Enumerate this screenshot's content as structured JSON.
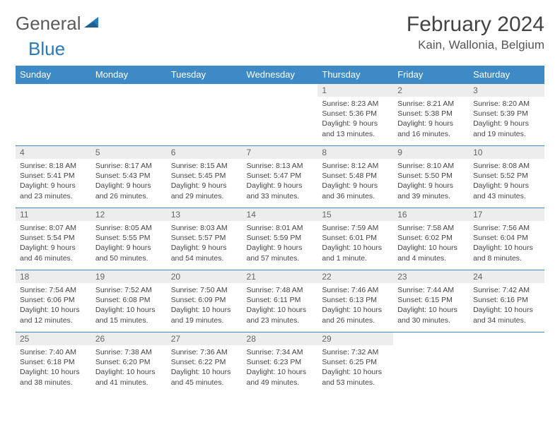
{
  "logo": {
    "textGray": "General",
    "textBlue": "Blue"
  },
  "header": {
    "title": "February 2024",
    "subtitle": "Kain, Wallonia, Belgium"
  },
  "colors": {
    "headerBar": "#3d8ac7",
    "dayNumBg": "#ededed",
    "textPrimary": "#444444",
    "textMuted": "#666666",
    "logoGray": "#5a5a5a",
    "logoBlue": "#2a7ab8",
    "pageBg": "#ffffff"
  },
  "fonts": {
    "title": 30,
    "subtitle": 17,
    "dayHeader": 13,
    "dayNum": 12,
    "body": 10.5
  },
  "dayNames": [
    "Sunday",
    "Monday",
    "Tuesday",
    "Wednesday",
    "Thursday",
    "Friday",
    "Saturday"
  ],
  "weeks": [
    [
      null,
      null,
      null,
      null,
      {
        "num": "1",
        "sunrise": "8:23 AM",
        "sunset": "5:36 PM",
        "daylight": "9 hours and 13 minutes."
      },
      {
        "num": "2",
        "sunrise": "8:21 AM",
        "sunset": "5:38 PM",
        "daylight": "9 hours and 16 minutes."
      },
      {
        "num": "3",
        "sunrise": "8:20 AM",
        "sunset": "5:39 PM",
        "daylight": "9 hours and 19 minutes."
      }
    ],
    [
      {
        "num": "4",
        "sunrise": "8:18 AM",
        "sunset": "5:41 PM",
        "daylight": "9 hours and 23 minutes."
      },
      {
        "num": "5",
        "sunrise": "8:17 AM",
        "sunset": "5:43 PM",
        "daylight": "9 hours and 26 minutes."
      },
      {
        "num": "6",
        "sunrise": "8:15 AM",
        "sunset": "5:45 PM",
        "daylight": "9 hours and 29 minutes."
      },
      {
        "num": "7",
        "sunrise": "8:13 AM",
        "sunset": "5:47 PM",
        "daylight": "9 hours and 33 minutes."
      },
      {
        "num": "8",
        "sunrise": "8:12 AM",
        "sunset": "5:48 PM",
        "daylight": "9 hours and 36 minutes."
      },
      {
        "num": "9",
        "sunrise": "8:10 AM",
        "sunset": "5:50 PM",
        "daylight": "9 hours and 39 minutes."
      },
      {
        "num": "10",
        "sunrise": "8:08 AM",
        "sunset": "5:52 PM",
        "daylight": "9 hours and 43 minutes."
      }
    ],
    [
      {
        "num": "11",
        "sunrise": "8:07 AM",
        "sunset": "5:54 PM",
        "daylight": "9 hours and 46 minutes."
      },
      {
        "num": "12",
        "sunrise": "8:05 AM",
        "sunset": "5:55 PM",
        "daylight": "9 hours and 50 minutes."
      },
      {
        "num": "13",
        "sunrise": "8:03 AM",
        "sunset": "5:57 PM",
        "daylight": "9 hours and 54 minutes."
      },
      {
        "num": "14",
        "sunrise": "8:01 AM",
        "sunset": "5:59 PM",
        "daylight": "9 hours and 57 minutes."
      },
      {
        "num": "15",
        "sunrise": "7:59 AM",
        "sunset": "6:01 PM",
        "daylight": "10 hours and 1 minute."
      },
      {
        "num": "16",
        "sunrise": "7:58 AM",
        "sunset": "6:02 PM",
        "daylight": "10 hours and 4 minutes."
      },
      {
        "num": "17",
        "sunrise": "7:56 AM",
        "sunset": "6:04 PM",
        "daylight": "10 hours and 8 minutes."
      }
    ],
    [
      {
        "num": "18",
        "sunrise": "7:54 AM",
        "sunset": "6:06 PM",
        "daylight": "10 hours and 12 minutes."
      },
      {
        "num": "19",
        "sunrise": "7:52 AM",
        "sunset": "6:08 PM",
        "daylight": "10 hours and 15 minutes."
      },
      {
        "num": "20",
        "sunrise": "7:50 AM",
        "sunset": "6:09 PM",
        "daylight": "10 hours and 19 minutes."
      },
      {
        "num": "21",
        "sunrise": "7:48 AM",
        "sunset": "6:11 PM",
        "daylight": "10 hours and 23 minutes."
      },
      {
        "num": "22",
        "sunrise": "7:46 AM",
        "sunset": "6:13 PM",
        "daylight": "10 hours and 26 minutes."
      },
      {
        "num": "23",
        "sunrise": "7:44 AM",
        "sunset": "6:15 PM",
        "daylight": "10 hours and 30 minutes."
      },
      {
        "num": "24",
        "sunrise": "7:42 AM",
        "sunset": "6:16 PM",
        "daylight": "10 hours and 34 minutes."
      }
    ],
    [
      {
        "num": "25",
        "sunrise": "7:40 AM",
        "sunset": "6:18 PM",
        "daylight": "10 hours and 38 minutes."
      },
      {
        "num": "26",
        "sunrise": "7:38 AM",
        "sunset": "6:20 PM",
        "daylight": "10 hours and 41 minutes."
      },
      {
        "num": "27",
        "sunrise": "7:36 AM",
        "sunset": "6:22 PM",
        "daylight": "10 hours and 45 minutes."
      },
      {
        "num": "28",
        "sunrise": "7:34 AM",
        "sunset": "6:23 PM",
        "daylight": "10 hours and 49 minutes."
      },
      {
        "num": "29",
        "sunrise": "7:32 AM",
        "sunset": "6:25 PM",
        "daylight": "10 hours and 53 minutes."
      },
      null,
      null
    ]
  ],
  "labels": {
    "sunrise": "Sunrise: ",
    "sunset": "Sunset: ",
    "daylight": "Daylight: "
  }
}
